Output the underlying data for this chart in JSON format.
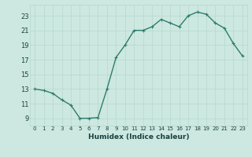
{
  "x": [
    0,
    1,
    2,
    3,
    4,
    5,
    6,
    7,
    8,
    9,
    10,
    11,
    12,
    13,
    14,
    15,
    16,
    17,
    18,
    19,
    20,
    21,
    22,
    23
  ],
  "y": [
    13.0,
    12.8,
    12.4,
    11.5,
    10.8,
    9.0,
    9.0,
    9.1,
    13.0,
    17.3,
    19.0,
    21.0,
    21.0,
    21.5,
    22.5,
    22.0,
    21.5,
    23.0,
    23.5,
    23.2,
    22.0,
    21.3,
    19.2,
    17.5
  ],
  "line_color": "#2e7d6e",
  "marker": "+",
  "marker_size": 3,
  "marker_linewidth": 0.8,
  "bg_color": "#cce8e0",
  "grid_color": "#b8d8d0",
  "xlabel": "Humidex (Indice chaleur)",
  "xlim": [
    -0.5,
    23.5
  ],
  "ylim": [
    8,
    24.5
  ],
  "yticks": [
    9,
    11,
    13,
    15,
    17,
    19,
    21,
    23
  ],
  "xticks": [
    0,
    1,
    2,
    3,
    4,
    5,
    6,
    7,
    8,
    9,
    10,
    11,
    12,
    13,
    14,
    15,
    16,
    17,
    18,
    19,
    20,
    21,
    22,
    23
  ],
  "font_color": "#1a4040",
  "linewidth": 1.0,
  "xlabel_fontsize": 6.5,
  "xtick_fontsize": 5.0,
  "ytick_fontsize": 6.0
}
